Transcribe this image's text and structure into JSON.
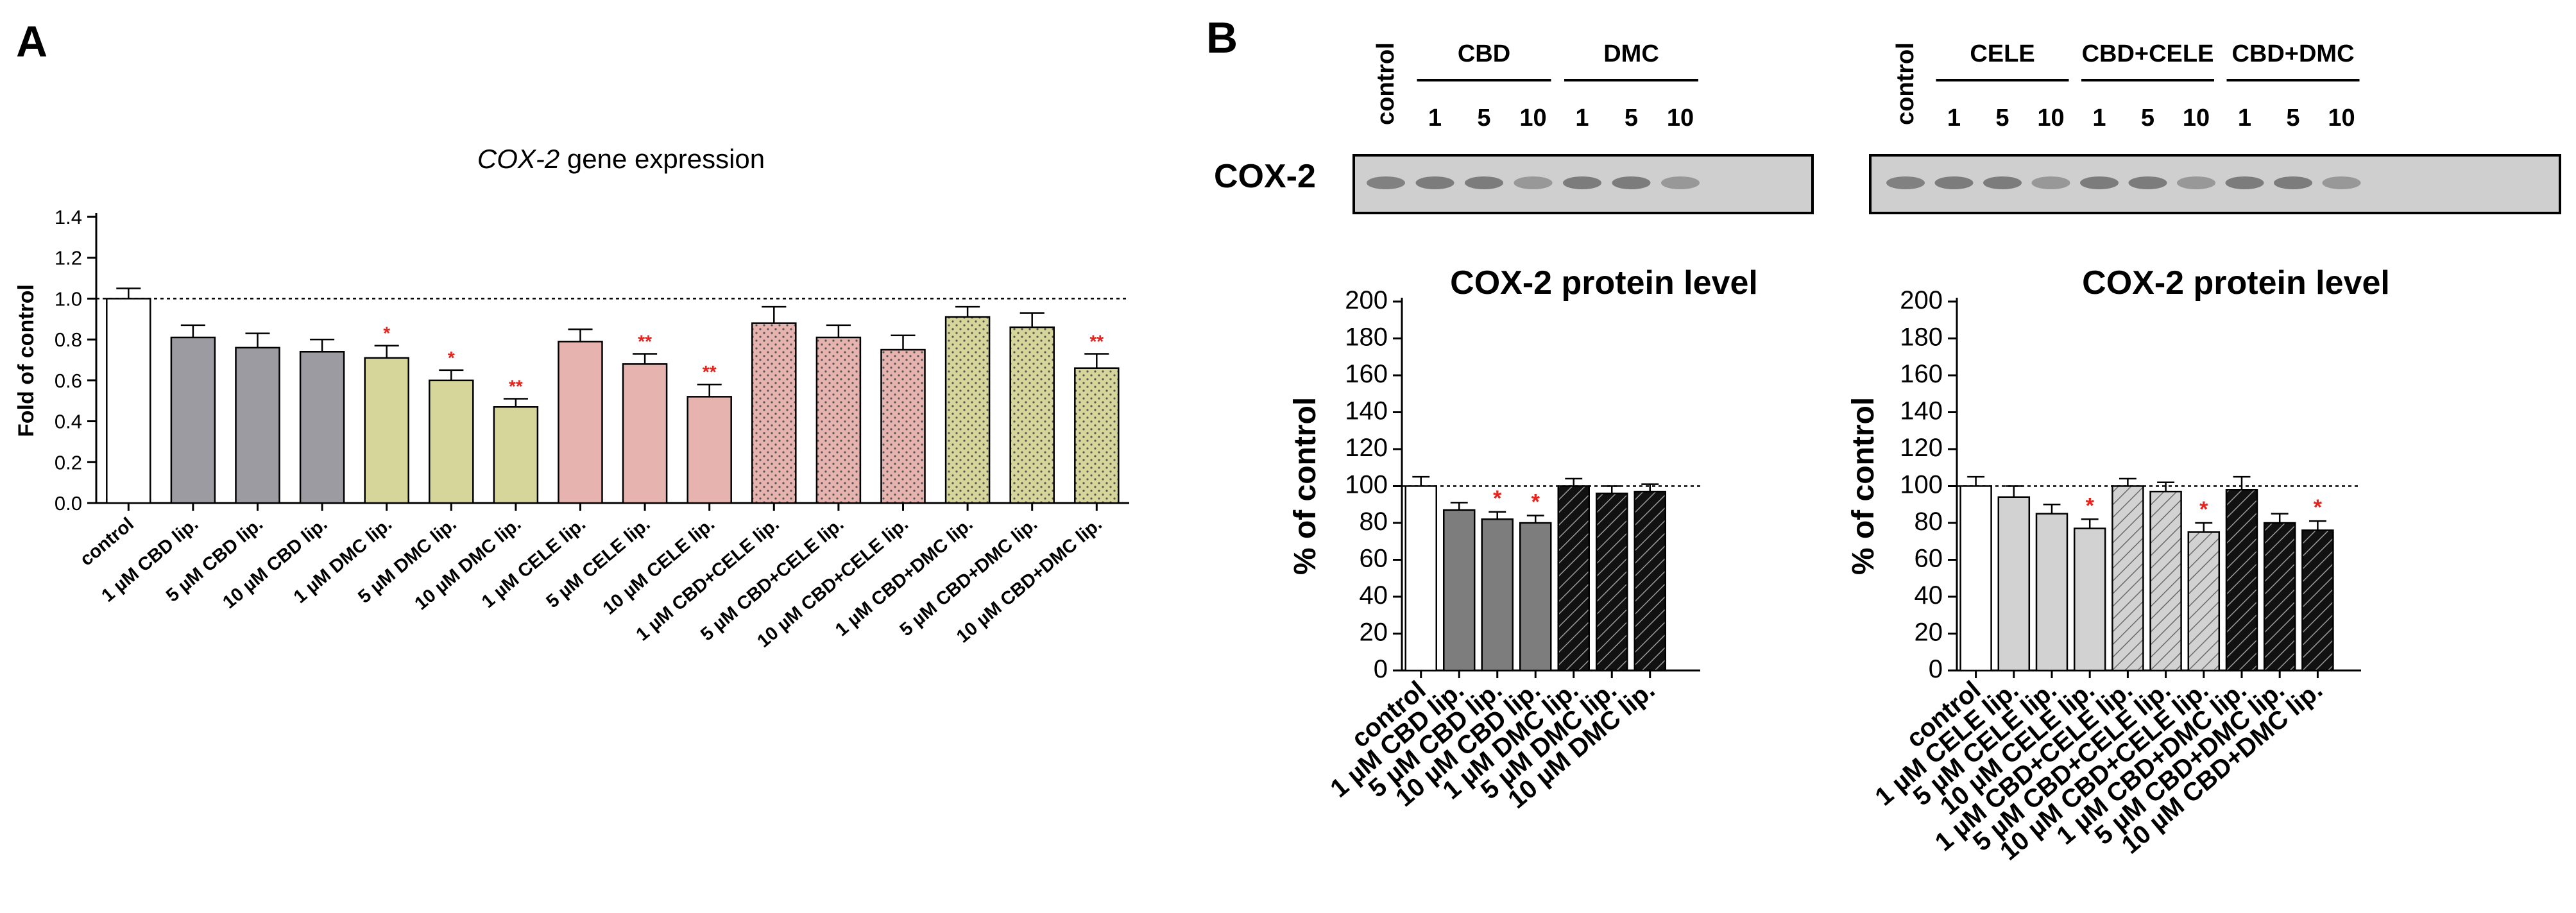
{
  "panel_a": {
    "letter": "A",
    "title_gene": "COX-2",
    "title_rest": " gene expression",
    "ylabel": "Fold of control"
  },
  "panel_b": {
    "letter": "B",
    "blot_row_label": "COX-2",
    "blot_left": {
      "control": "control",
      "groups": [
        {
          "name": "CBD",
          "lanes": [
            "1",
            "5",
            "10"
          ]
        },
        {
          "name": "DMC",
          "lanes": [
            "1",
            "5",
            "10"
          ]
        }
      ]
    },
    "blot_right": {
      "control": "control",
      "groups": [
        {
          "name": "CELE",
          "lanes": [
            "1",
            "5",
            "10"
          ]
        },
        {
          "name": "CBD+CELE",
          "lanes": [
            "1",
            "5",
            "10"
          ]
        },
        {
          "name": "CBD+DMC",
          "lanes": [
            "1",
            "5",
            "10"
          ]
        }
      ]
    }
  },
  "chart_data": [
    {
      "id": "A",
      "type": "bar",
      "title": "COX-2 gene expression",
      "ylabel": "Fold of control",
      "ylim": [
        0,
        1.4
      ],
      "yticks": [
        "0.0",
        "0.2",
        "0.4",
        "0.6",
        "0.8",
        "1.0",
        "1.2",
        "1.4"
      ],
      "reference_line": 1.0,
      "categories": [
        "control",
        "1 µM CBD lip.",
        "5 µM CBD lip.",
        "10 µM CBD lip.",
        "1 µM DMC lip.",
        "5 µM DMC lip.",
        "10 µM DMC lip.",
        "1 µM CELE lip.",
        "5 µM CELE lip.",
        "10 µM CELE lip.",
        "1 µM CBD+CELE lip.",
        "5 µM CBD+CELE lip.",
        "10 µM CBD+CELE lip.",
        "1 µM CBD+DMC lip.",
        "5 µM CBD+DMC lip.",
        "10 µM CBD+DMC lip."
      ],
      "values": [
        1.0,
        0.81,
        0.76,
        0.74,
        0.71,
        0.6,
        0.47,
        0.79,
        0.68,
        0.52,
        0.88,
        0.81,
        0.75,
        0.91,
        0.86,
        0.66
      ],
      "errors": [
        0.05,
        0.06,
        0.07,
        0.06,
        0.06,
        0.05,
        0.04,
        0.06,
        0.05,
        0.06,
        0.08,
        0.06,
        0.07,
        0.05,
        0.07,
        0.07
      ],
      "significance": [
        "",
        "",
        "",
        "",
        "*",
        "*",
        "**",
        "",
        "**",
        "**",
        "",
        "",
        "",
        "",
        "",
        "**"
      ],
      "colors": [
        "#ffffff",
        "#9b9ba1",
        "#9b9ba1",
        "#9b9ba1",
        "#d6d69a",
        "#d6d69a",
        "#d6d69a",
        "#e7b3ae",
        "#e7b3ae",
        "#e7b3ae",
        "#e7b3ae",
        "#e7b3ae",
        "#e7b3ae",
        "#d6d69a",
        "#d6d69a",
        "#d6d69a"
      ],
      "patterns": [
        "none",
        "none",
        "none",
        "none",
        "none",
        "none",
        "none",
        "none",
        "none",
        "none",
        "dots",
        "dots",
        "dots",
        "dots",
        "dots",
        "dots"
      ]
    },
    {
      "id": "B1",
      "type": "bar",
      "title": "COX-2 protein level",
      "ylabel": "% of control",
      "ylim": [
        0,
        200
      ],
      "yticks": [
        "0",
        "20",
        "40",
        "60",
        "80",
        "100",
        "120",
        "140",
        "160",
        "180",
        "200"
      ],
      "reference_line": 100,
      "categories": [
        "control",
        "1 µM CBD lip.",
        "5 µM CBD lip.",
        "10 µM CBD lip.",
        "1 µM DMC lip.",
        "5 µM DMC lip.",
        "10 µM DMC lip."
      ],
      "values": [
        100,
        87,
        82,
        80,
        100,
        96,
        97
      ],
      "errors": [
        5,
        4,
        4,
        4,
        4,
        4,
        4
      ],
      "significance": [
        "",
        "",
        "*",
        "*",
        "",
        "",
        ""
      ],
      "colors": [
        "#ffffff",
        "#7d7d7d",
        "#7d7d7d",
        "#7d7d7d",
        "#111111",
        "#111111",
        "#111111"
      ],
      "patterns": [
        "none",
        "none",
        "none",
        "none",
        "hatch-light",
        "hatch-light",
        "hatch-light"
      ]
    },
    {
      "id": "B2",
      "type": "bar",
      "title": "COX-2 protein level",
      "ylabel": "% of control",
      "ylim": [
        0,
        200
      ],
      "yticks": [
        "0",
        "20",
        "40",
        "60",
        "80",
        "100",
        "120",
        "140",
        "160",
        "180",
        "200"
      ],
      "reference_line": 100,
      "categories": [
        "control",
        "1 µM CELE lip.",
        "5 µM CELE lip.",
        "10 µM CELE lip.",
        "1 µM CBD+CELE lip.",
        "5 µM CBD+CELE lip.",
        "10 µM CBD+CELE lip.",
        "1 µM CBD+DMC lip.",
        "5 µM CBD+DMC lip.",
        "10 µM CBD+DMC lip."
      ],
      "values": [
        100,
        94,
        85,
        77,
        100,
        97,
        75,
        98,
        80,
        76
      ],
      "errors": [
        5,
        6,
        5,
        5,
        4,
        5,
        5,
        7,
        5,
        5
      ],
      "significance": [
        "",
        "",
        "",
        "*",
        "",
        "",
        "*",
        "",
        "",
        "*"
      ],
      "colors": [
        "#ffffff",
        "#d2d2d2",
        "#d2d2d2",
        "#d2d2d2",
        "#d2d2d2",
        "#d2d2d2",
        "#d2d2d2",
        "#111111",
        "#111111",
        "#111111"
      ],
      "patterns": [
        "none",
        "none",
        "none",
        "none",
        "hatch-dark",
        "hatch-dark",
        "hatch-dark",
        "hatch-light",
        "hatch-light",
        "hatch-light"
      ]
    }
  ]
}
